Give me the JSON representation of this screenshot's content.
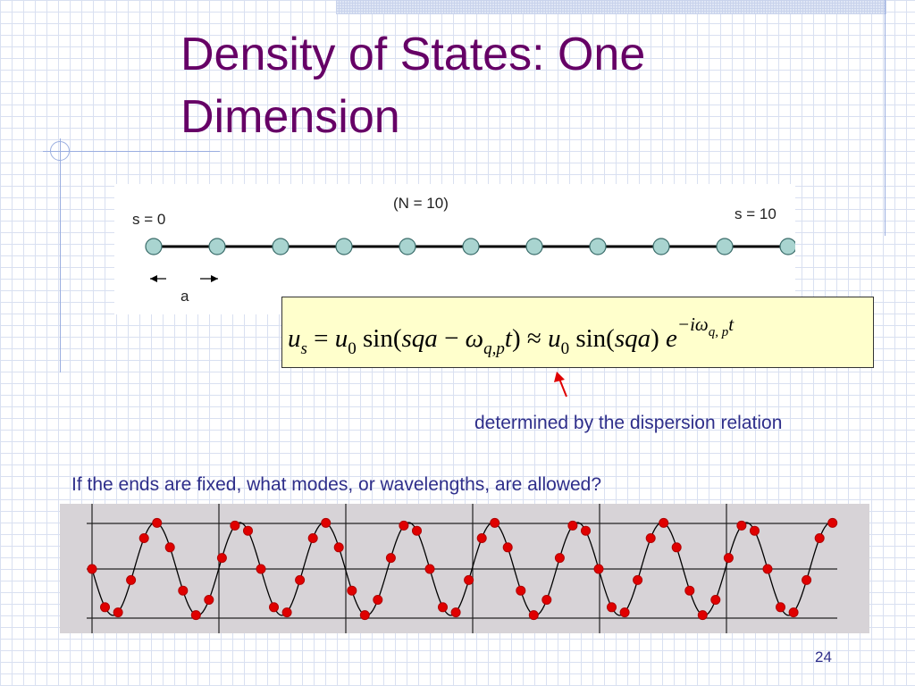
{
  "slide": {
    "title": "Density of States: One Dimension",
    "page_number": "24"
  },
  "chain": {
    "label_start": "s = 0",
    "label_count": "(N = 10)",
    "label_end": "s = 10",
    "label_spacing": "a",
    "atom_count": 11,
    "atom_color": "#a9d4d0"
  },
  "equation": {
    "lhs_var": "u",
    "lhs_sub": "s",
    "eq": " = ",
    "amp1": "u",
    "amp1_sub": "0",
    "sin_open": " sin(",
    "phase": "sqa",
    "minus": " − ",
    "omega": "ω",
    "omega_sub": "q,p",
    "t_close": "t",
    "paren_close": ")",
    "approx": " ≈ ",
    "amp2": "u",
    "amp2_sub": "0",
    "sin2_open": " sin(",
    "phase2": "sqa",
    "paren2_close": ") ",
    "exp_base": "e",
    "exponent": "−iω",
    "exponent_sub": "q, p",
    "exponent_t": "t",
    "box_color": "#ffffcc"
  },
  "annotation": "determined by the dispersion relation",
  "question": "If the ends are fixed, what modes, or wavelengths, are allowed?",
  "colors": {
    "title": "#660066",
    "text": "#2e2e8a",
    "arrow": "#e00000",
    "marker": "#e00000",
    "wave_bg": "#d7d3d7"
  }
}
